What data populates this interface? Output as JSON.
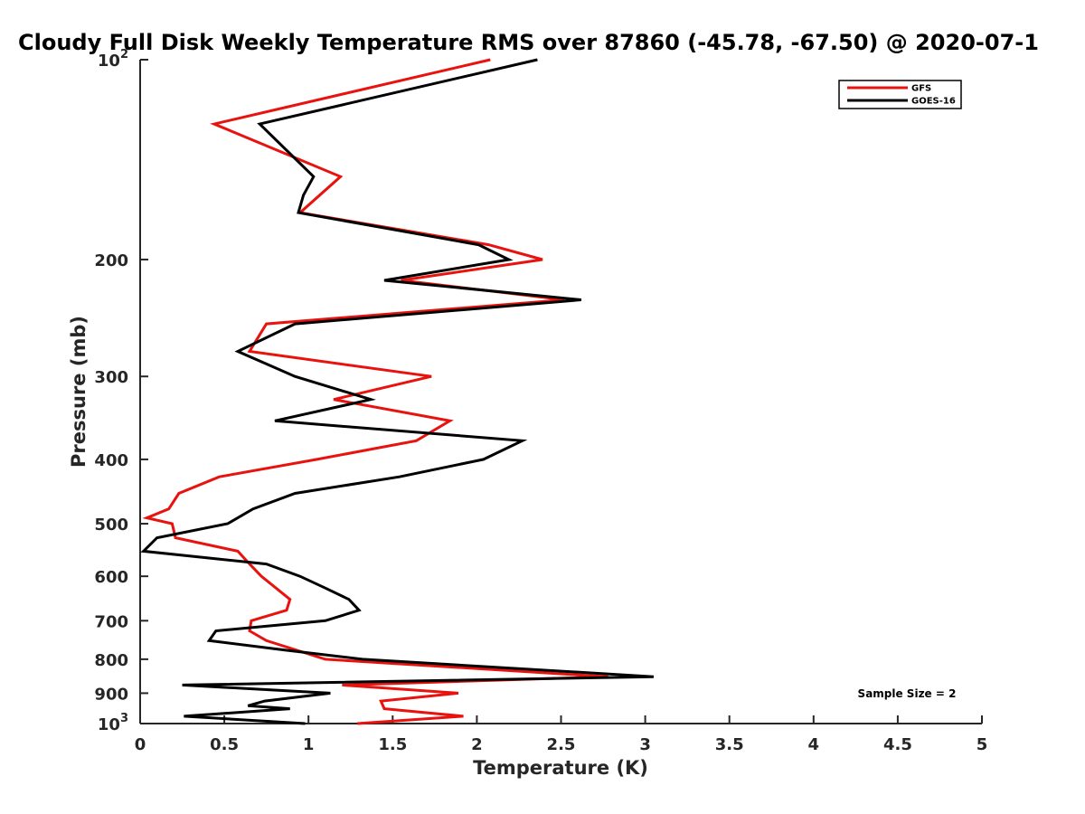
{
  "chart_data": {
    "type": "line",
    "title": "Cloudy Full Disk Weekly Temperature RMS over 87860 (-45.78, -67.50) @ 2020-07-1",
    "xlabel": "Temperature (K)",
    "ylabel": "Pressure (mb)",
    "xlim": [
      0,
      5
    ],
    "ylim": [
      100,
      1000
    ],
    "y_scale": "log",
    "y_reversed": true,
    "grid": false,
    "legend_position": "top-right",
    "x_ticks": [
      "0",
      "0.5",
      "1",
      "1.5",
      "2",
      "2.5",
      "3",
      "3.5",
      "4",
      "4.5",
      "5"
    ],
    "y_ticks": [
      {
        "value": 100,
        "base": "10",
        "exp": "2"
      },
      {
        "value": 200,
        "label": "200"
      },
      {
        "value": 300,
        "label": "300"
      },
      {
        "value": 400,
        "label": "400"
      },
      {
        "value": 500,
        "label": "500"
      },
      {
        "value": 600,
        "label": "600"
      },
      {
        "value": 700,
        "label": "700"
      },
      {
        "value": 800,
        "label": "800"
      },
      {
        "value": 900,
        "label": "900"
      },
      {
        "value": 1000,
        "base": "10",
        "exp": "3"
      }
    ],
    "annotation": "Sample Size = 2",
    "series": [
      {
        "name": "GFS",
        "color": "#e8120e",
        "points": [
          [
            2.08,
            100
          ],
          [
            0.44,
            125
          ],
          [
            1.19,
            150
          ],
          [
            0.95,
            170
          ],
          [
            2.07,
            190
          ],
          [
            2.39,
            200
          ],
          [
            1.55,
            215
          ],
          [
            2.52,
            230
          ],
          [
            0.75,
            250
          ],
          [
            0.65,
            275
          ],
          [
            1.73,
            300
          ],
          [
            1.15,
            325
          ],
          [
            1.84,
            350
          ],
          [
            1.64,
            375
          ],
          [
            1.05,
            400
          ],
          [
            0.47,
            425
          ],
          [
            0.23,
            450
          ],
          [
            0.17,
            475
          ],
          [
            0.04,
            490
          ],
          [
            0.19,
            500
          ],
          [
            0.21,
            525
          ],
          [
            0.58,
            550
          ],
          [
            0.65,
            575
          ],
          [
            0.72,
            600
          ],
          [
            0.89,
            650
          ],
          [
            0.87,
            675
          ],
          [
            0.66,
            700
          ],
          [
            0.65,
            725
          ],
          [
            0.75,
            750
          ],
          [
            1.1,
            800
          ],
          [
            2.78,
            850
          ],
          [
            1.2,
            875
          ],
          [
            1.89,
            900
          ],
          [
            1.43,
            925
          ],
          [
            1.45,
            950
          ],
          [
            1.92,
            975
          ],
          [
            1.29,
            1000
          ]
        ]
      },
      {
        "name": "GOES-16",
        "color": "#000000",
        "points": [
          [
            2.36,
            100
          ],
          [
            0.71,
            125
          ],
          [
            1.03,
            150
          ],
          [
            0.97,
            160
          ],
          [
            0.94,
            170
          ],
          [
            2.01,
            190
          ],
          [
            2.19,
            200
          ],
          [
            1.45,
            215
          ],
          [
            2.62,
            230
          ],
          [
            0.92,
            250
          ],
          [
            0.58,
            275
          ],
          [
            0.92,
            300
          ],
          [
            1.37,
            325
          ],
          [
            0.8,
            350
          ],
          [
            2.27,
            375
          ],
          [
            2.04,
            400
          ],
          [
            1.54,
            425
          ],
          [
            0.92,
            450
          ],
          [
            0.67,
            475
          ],
          [
            0.52,
            500
          ],
          [
            0.1,
            525
          ],
          [
            0.02,
            550
          ],
          [
            0.75,
            575
          ],
          [
            0.95,
            600
          ],
          [
            1.1,
            625
          ],
          [
            1.24,
            650
          ],
          [
            1.3,
            675
          ],
          [
            1.1,
            700
          ],
          [
            0.45,
            725
          ],
          [
            0.41,
            750
          ],
          [
            0.86,
            775
          ],
          [
            1.32,
            800
          ],
          [
            3.05,
            850
          ],
          [
            0.25,
            875
          ],
          [
            1.13,
            900
          ],
          [
            0.74,
            925
          ],
          [
            0.64,
            940
          ],
          [
            0.89,
            950
          ],
          [
            0.26,
            975
          ],
          [
            0.98,
            1000
          ]
        ]
      }
    ]
  }
}
